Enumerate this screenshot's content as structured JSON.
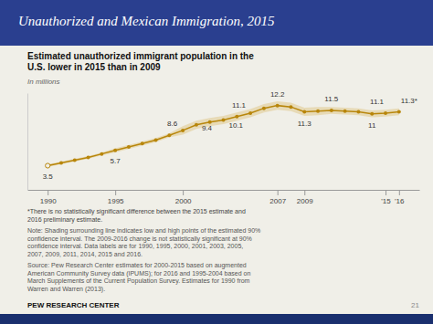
{
  "chart_data": {
    "type": "line",
    "slide_title": "Unauthorized and Mexican Immigration, 2015",
    "title": "Estimated unauthorized immigrant population in the\nU.S. lower in 2015 than in 2009",
    "subtitle": "In millions",
    "x": [
      1990,
      1991,
      1992,
      1993,
      1994,
      1995,
      1996,
      1997,
      1998,
      1999,
      2000,
      2001,
      2002,
      2003,
      2004,
      2005,
      2006,
      2007,
      2008,
      2009,
      2010,
      2011,
      2012,
      2013,
      2014,
      2015,
      2016
    ],
    "values": [
      3.5,
      3.9,
      4.3,
      4.7,
      5.2,
      5.7,
      6.2,
      6.7,
      7.2,
      7.9,
      8.6,
      9.4,
      9.8,
      10.1,
      10.6,
      11.1,
      11.8,
      12.2,
      12.0,
      11.3,
      11.4,
      11.5,
      11.4,
      11.3,
      11.0,
      11.1,
      11.3
    ],
    "color": "#b8860b",
    "marker": "circle",
    "band": {
      "lower": [
        3.3,
        3.7,
        4.1,
        4.5,
        5.0,
        5.4,
        5.9,
        6.4,
        6.9,
        7.6,
        8.0,
        8.8,
        9.2,
        9.5,
        10.0,
        10.5,
        11.2,
        11.6,
        11.4,
        10.7,
        10.8,
        11.0,
        10.9,
        10.8,
        10.5,
        10.6,
        10.8
      ],
      "upper": [
        3.7,
        4.1,
        4.5,
        4.9,
        5.4,
        6.0,
        6.5,
        7.0,
        7.5,
        8.2,
        9.2,
        10.0,
        10.4,
        10.7,
        11.2,
        11.7,
        12.4,
        12.8,
        12.6,
        11.9,
        12.0,
        12.0,
        11.9,
        11.8,
        11.5,
        11.6,
        11.8
      ],
      "color": "#d4a843"
    },
    "annotations": [
      {
        "x": 1990,
        "y": 3.5,
        "text": "3.5"
      },
      {
        "x": 1995,
        "y": 5.7,
        "text": "5.7"
      },
      {
        "x": 2000,
        "y": 8.6,
        "text": "8.6"
      },
      {
        "x": 2001,
        "y": 9.4,
        "text": "9.4"
      },
      {
        "x": 2003,
        "y": 10.1,
        "text": "10.1"
      },
      {
        "x": 2005,
        "y": 11.1,
        "text": "11.1"
      },
      {
        "x": 2007,
        "y": 12.2,
        "text": "12.2"
      },
      {
        "x": 2009,
        "y": 11.3,
        "text": "11.3"
      },
      {
        "x": 2011,
        "y": 11.5,
        "text": "11.5"
      },
      {
        "x": 2014,
        "y": 11.0,
        "text": "11"
      },
      {
        "x": 2015,
        "y": 11.1,
        "text": "11.1"
      },
      {
        "x": 2016,
        "y": 11.3,
        "text": "11.3*"
      }
    ],
    "xlim": [
      1988.5,
      2017.5
    ],
    "xticks": [
      1990,
      1995,
      2000,
      2007,
      2009,
      {
        "value": 2015,
        "label": "'15"
      },
      {
        "value": 2016,
        "label": "'16"
      }
    ],
    "ylim": [
      0,
      14
    ],
    "yticks": [],
    "tick_labels": "x",
    "grid": false,
    "notes": [
      "*There is no statistically significant difference between the 2015 estimate and\n2016 preliminary estimate.",
      "Note: Shading surrounding line indicates low and high points of the estimated 90%\nconfidence interval. The 2009-2016 change is not statistically significant at 90%\nconfidence interval. Data labels are for 1990, 1995, 2000, 2001, 2003, 2005,\n2007, 2009, 2011, 2014, 2015 and 2016."
    ],
    "source": "Source: Pew Research Center estimates for 2000-2015 based on augmented\nAmerican Community Survey data (IPUMS); for 2016 and 1995-2004 based on\nMarch Supplements of the Current Population Survey. Estimates for 1990 from\nWarren and Warren (2013).",
    "footer": "PEW RESEARCH CENTER",
    "page_number": "21"
  }
}
